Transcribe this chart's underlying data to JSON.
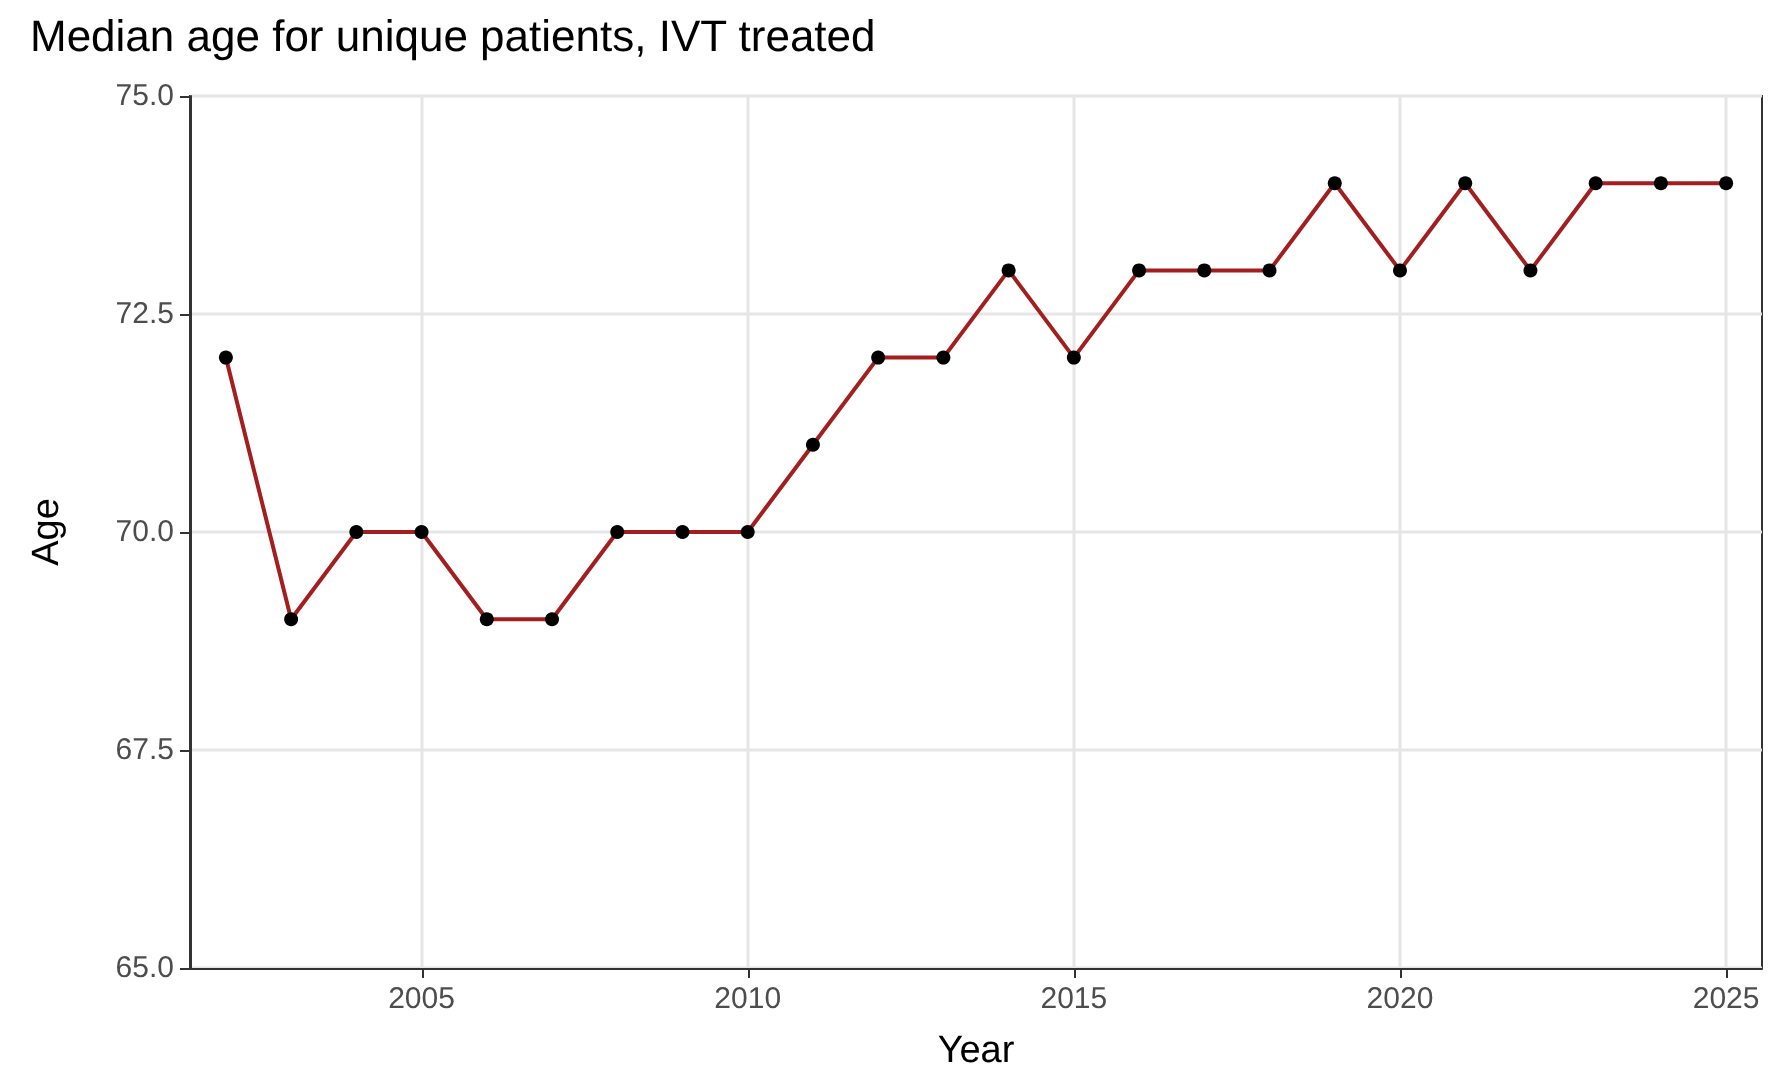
{
  "chart_data": {
    "type": "line",
    "title": "Median age for unique patients, IVT treated",
    "xlabel": "Year",
    "ylabel": "Age",
    "x": [
      2002,
      2003,
      2004,
      2005,
      2006,
      2007,
      2008,
      2009,
      2010,
      2011,
      2012,
      2013,
      2014,
      2015,
      2016,
      2017,
      2018,
      2019,
      2020,
      2021,
      2022,
      2023,
      2024,
      2025
    ],
    "series": [
      {
        "color": "#a31f1f",
        "values": [
          72,
          69,
          70,
          70,
          69,
          69,
          70,
          70,
          70,
          71,
          72,
          72,
          73,
          72,
          73,
          73,
          73,
          74,
          73,
          74,
          73,
          74,
          74,
          74
        ]
      }
    ],
    "xlim": [
      2001.45,
      2025.55
    ],
    "xticks": [
      2005,
      2010,
      2015,
      2020,
      2025
    ],
    "ylim": [
      65,
      75
    ],
    "yticks": [
      {
        "value": 65,
        "label": "65.0"
      },
      {
        "value": 67.5,
        "label": "67.5"
      },
      {
        "value": 70,
        "label": "70.0"
      },
      {
        "value": 72.5,
        "label": "72.5"
      },
      {
        "value": 75,
        "label": "75.0"
      }
    ],
    "grid": true,
    "marker": "circle",
    "line_style": "solid"
  }
}
